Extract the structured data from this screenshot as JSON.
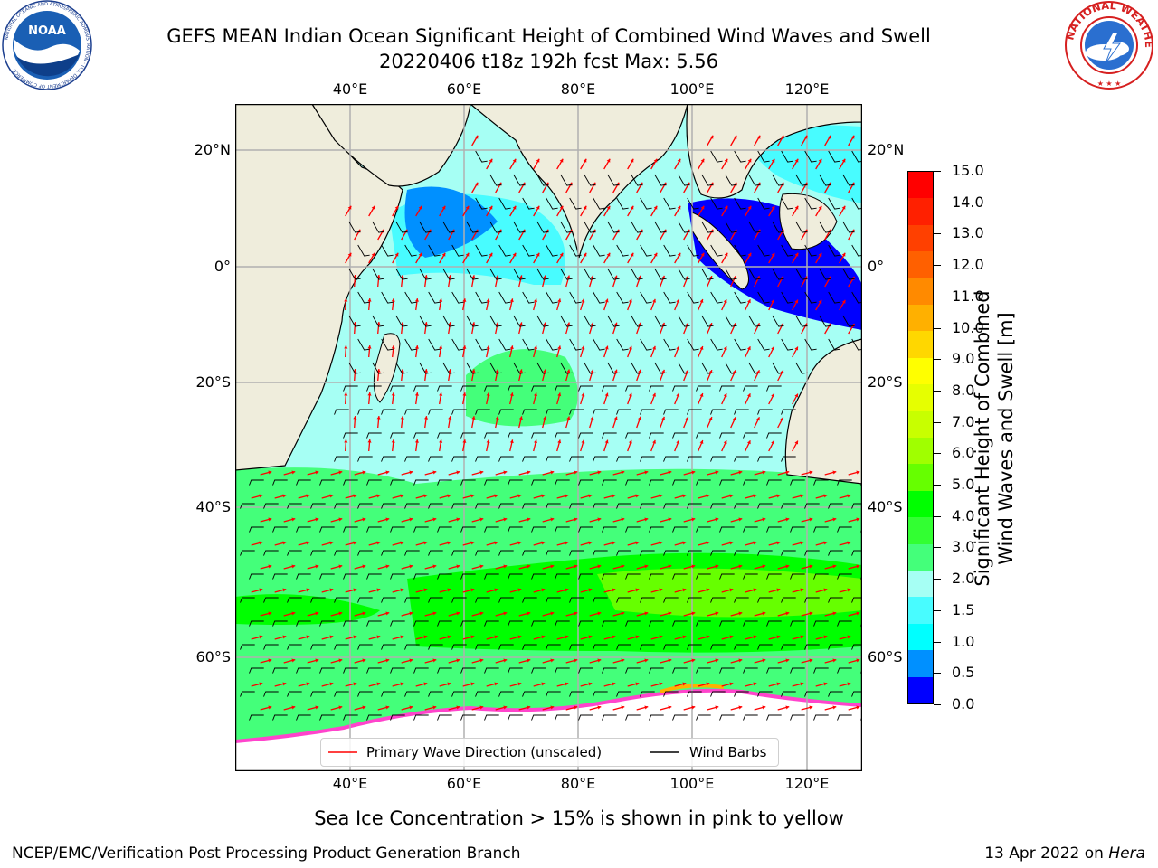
{
  "title_line1": "GEFS MEAN Indian Ocean Significant Height of Combined Wind Waves and Swell",
  "title_line2": "20220406 t18z 192h fcst   Max: 5.56",
  "map": {
    "lon_ticks_top": [
      "40°E",
      "60°E",
      "80°E",
      "100°E",
      "120°E"
    ],
    "lon_ticks_bottom": [
      "40°E",
      "60°E",
      "80°E",
      "100°E",
      "120°E"
    ],
    "lat_ticks_left": [
      "20°N",
      "0°",
      "20°S",
      "40°S",
      "60°S"
    ],
    "lat_ticks_right": [
      "20°N",
      "0°",
      "20°S",
      "40°S",
      "60°S"
    ],
    "extent": {
      "lon_min": 20,
      "lon_max": 130,
      "lat_min": -76,
      "lat_max": 28
    },
    "land_color": "#efeddc",
    "grid_color": "#b0b0b0",
    "arrow_color": "#ff0000",
    "barb_color": "#000000"
  },
  "legend": {
    "primary_wave_label": "Primary Wave Direction (unscaled)",
    "wind_barbs_label": "Wind Barbs"
  },
  "colorbar": {
    "title_line1": "Significant Height of Combined",
    "title_line2": "Wind Waves and Swell [m]",
    "labels": [
      "15.0",
      "14.0",
      "13.0",
      "12.0",
      "11.0",
      "10.0",
      "9.0",
      "8.0",
      "7.0",
      "6.0",
      "5.0",
      "4.0",
      "3.0",
      "2.0",
      "1.5",
      "1.0",
      "0.5",
      "0.0"
    ],
    "colors_top_to_bottom": [
      "#ff0000",
      "#ff2000",
      "#ff4000",
      "#ff6000",
      "#ff8a00",
      "#ffb000",
      "#ffd700",
      "#ffff00",
      "#e6ff00",
      "#c8ff00",
      "#a0ff00",
      "#66ff00",
      "#00ff00",
      "#32ff32",
      "#44ff7a",
      "#a6fff4",
      "#48fcff",
      "#00ffff",
      "#0090ff",
      "#0000ff"
    ]
  },
  "footer": {
    "caption": "Sea Ice Concentration > 15% is shown in pink to yellow",
    "left": "NCEP/EMC/Verification Post Processing Product Generation Branch",
    "right_date": "13 Apr 2022 on ",
    "right_host": "Hera"
  },
  "logos": {
    "noaa_text": "NOAA",
    "noaa_ring": "NATIONAL OCEANIC AND ATMOSPHERIC ADMINISTRATION · U.S. DEPARTMENT OF COMMERCE",
    "nws_ring": "NATIONAL WEATHER SERVICE"
  }
}
